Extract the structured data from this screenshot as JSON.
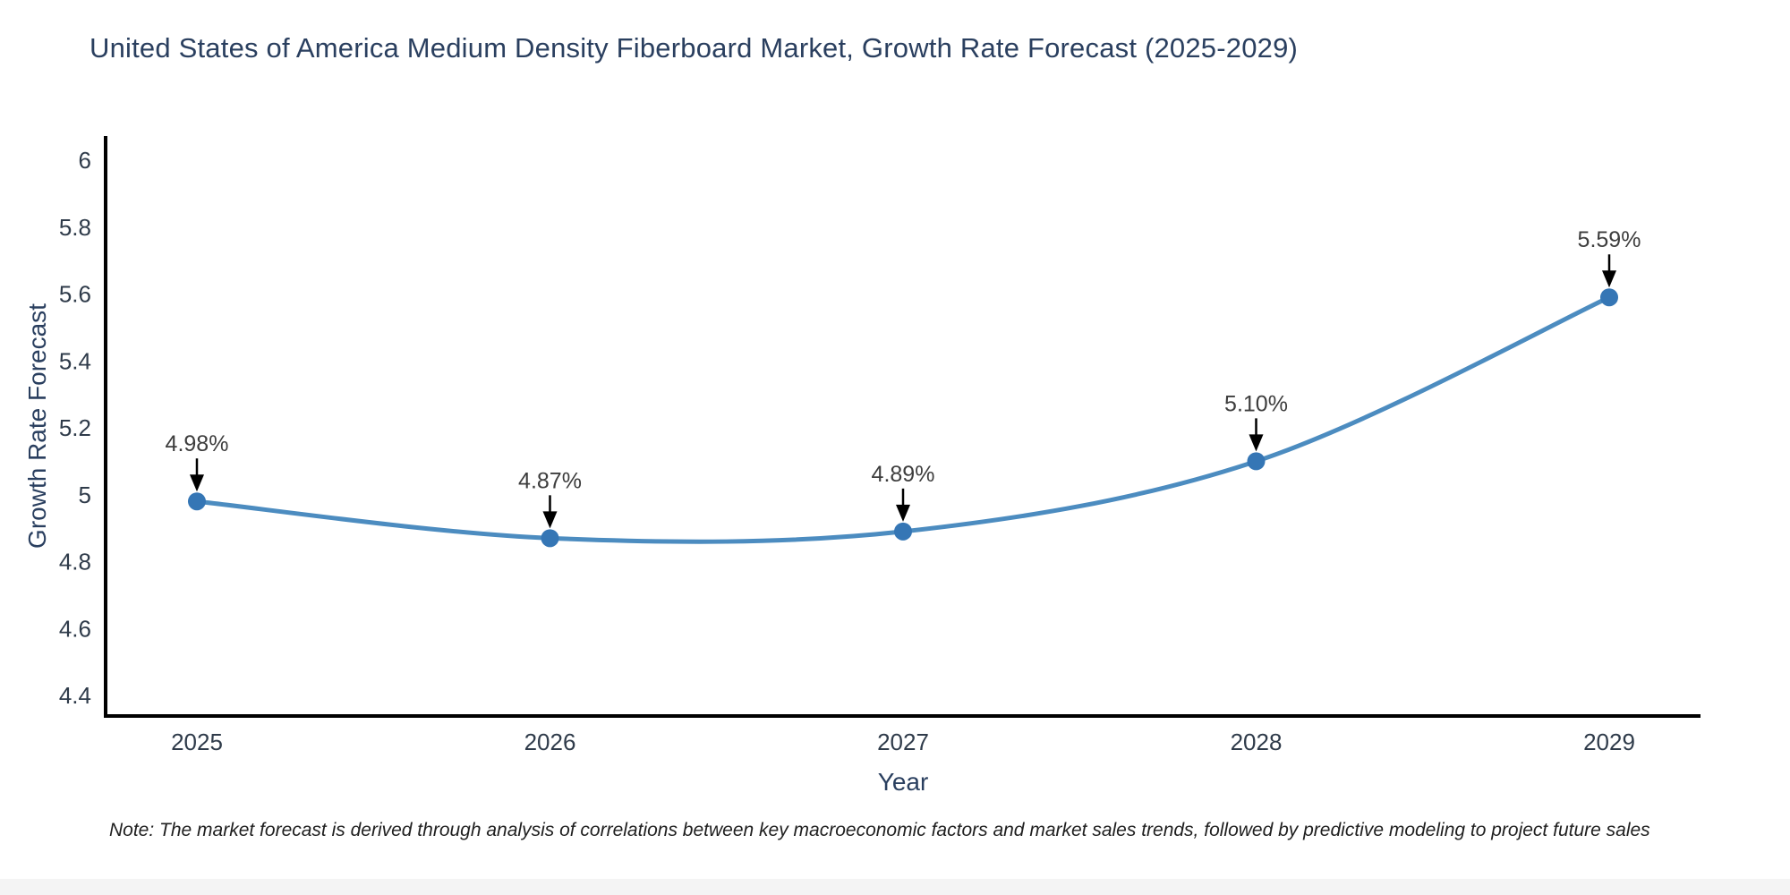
{
  "title": "United States of America Medium Density Fiberboard Market, Growth Rate Forecast (2025-2029)",
  "footnote": "Note: The market forecast is derived through analysis of correlations between key macroeconomic factors and market sales trends, followed by predictive modeling to project future sales",
  "chart_data": {
    "type": "line",
    "title": "United States of America Medium Density Fiberboard Market, Growth Rate Forecast (2025-2029)",
    "xlabel": "Year",
    "ylabel": "Growth Rate Forecast",
    "x": [
      2025,
      2026,
      2027,
      2028,
      2029
    ],
    "series": [
      {
        "name": "Growth Rate Forecast",
        "values": [
          4.98,
          4.87,
          4.89,
          5.1,
          5.59
        ]
      }
    ],
    "point_labels": [
      "4.98%",
      "4.87%",
      "4.89%",
      "5.10%",
      "5.59%"
    ],
    "yticks": [
      4.4,
      4.6,
      4.8,
      5,
      5.2,
      5.4,
      5.6,
      5.8,
      6
    ],
    "xticks": [
      "2025",
      "2026",
      "2027",
      "2028",
      "2029"
    ],
    "ylim": [
      4.33,
      6.07
    ],
    "grid": false,
    "legend_position": "none",
    "colors": {
      "line": "#4c8cc0",
      "marker": "#3576b5",
      "axis": "#000000",
      "tick_text": "#2f3b4a",
      "annotation_text": "#3d3d3d",
      "annotation_arrow": "#000000",
      "title_text": "#2a3f5f"
    }
  }
}
